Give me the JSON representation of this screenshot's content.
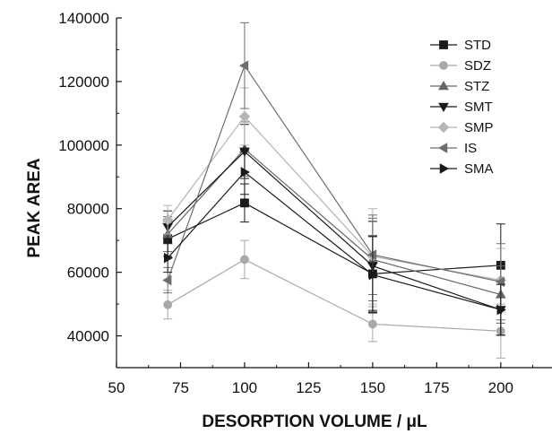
{
  "chart_data": {
    "type": "line",
    "title": "",
    "xlabel": "DESORPTION VOLUME / μL",
    "ylabel": "PEAK AREA",
    "xlim": [
      50,
      220
    ],
    "ylim": [
      30000,
      140000
    ],
    "x": [
      70,
      100,
      150,
      200
    ],
    "xticks": [
      "50",
      "75",
      "100",
      "125",
      "150",
      "175",
      "200"
    ],
    "yticks": [
      "40000",
      "60000",
      "80000",
      "100000",
      "120000",
      "140000"
    ],
    "grid": false,
    "legend_position": "top-right",
    "series": [
      {
        "name": "STD",
        "marker": "square",
        "color": "#1a1a1a",
        "values": [
          70500,
          81800,
          59500,
          62200
        ],
        "errors": [
          5500,
          6000,
          12000,
          13000
        ]
      },
      {
        "name": "SDZ",
        "marker": "circle",
        "color": "#a8a8a8",
        "values": [
          49800,
          64000,
          43700,
          41500
        ],
        "errors": [
          4500,
          6000,
          5500,
          8500
        ]
      },
      {
        "name": "STZ",
        "marker": "triangle-up",
        "color": "#666666",
        "values": [
          72000,
          98800,
          64000,
          53000
        ],
        "errors": [
          5500,
          8500,
          13000,
          9000
        ]
      },
      {
        "name": "SMT",
        "marker": "triangle-down",
        "color": "#1a1a1a",
        "values": [
          74300,
          98000,
          62000,
          48200
        ],
        "errors": [
          5000,
          8500,
          14000,
          8000
        ]
      },
      {
        "name": "SMP",
        "marker": "diamond",
        "color": "#b5b5b5",
        "values": [
          76500,
          109000,
          65000,
          57500
        ],
        "errors": [
          4500,
          9000,
          15000,
          10000
        ]
      },
      {
        "name": "IS",
        "marker": "triangle-left",
        "color": "#6e6e6e",
        "values": [
          57500,
          125000,
          65500,
          57000
        ],
        "errors": [
          4000,
          13500,
          12500,
          12000
        ]
      },
      {
        "name": "SMA",
        "marker": "triangle-right",
        "color": "#1a1a1a",
        "values": [
          64500,
          91500,
          59200,
          48200
        ],
        "errors": [
          4500,
          7000,
          12000,
          8000
        ]
      }
    ]
  }
}
